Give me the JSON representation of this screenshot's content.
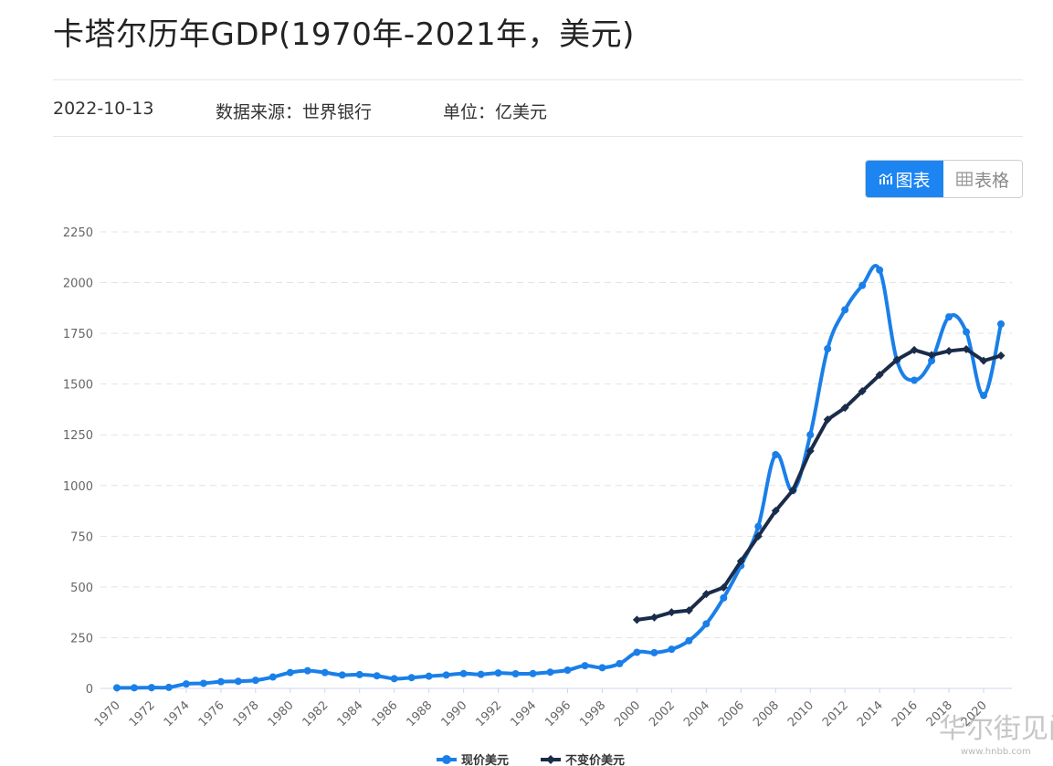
{
  "page": {
    "title": "卡塔尔历年GDP(1970年-2021年，美元)",
    "date": "2022-10-13",
    "source": "数据来源：世界银行",
    "unit": "单位：亿美元"
  },
  "view_toggle": {
    "chart_label": "图表",
    "table_label": "表格",
    "active": "chart"
  },
  "watermark": {
    "text": "华尔街见闻",
    "sub": "www.hnbb.com"
  },
  "colors": {
    "current": "#1a7fe8",
    "constant": "#1a2c4a",
    "grid": "#e3e3e3",
    "accent": "#1d85f2"
  },
  "chart_data": {
    "type": "line",
    "title": "",
    "xlabel": "",
    "ylabel": "",
    "ylim": [
      0,
      2250
    ],
    "yticks": [
      0,
      250,
      500,
      750,
      1000,
      1250,
      1500,
      1750,
      2000,
      2250
    ],
    "x": [
      1970,
      1971,
      1972,
      1973,
      1974,
      1975,
      1976,
      1977,
      1978,
      1979,
      1980,
      1981,
      1982,
      1983,
      1984,
      1985,
      1986,
      1987,
      1988,
      1989,
      1990,
      1991,
      1992,
      1993,
      1994,
      1995,
      1996,
      1997,
      1998,
      1999,
      2000,
      2001,
      2002,
      2003,
      2004,
      2005,
      2006,
      2007,
      2008,
      2009,
      2010,
      2011,
      2012,
      2013,
      2014,
      2015,
      2016,
      2017,
      2018,
      2019,
      2020,
      2021
    ],
    "xtick_labels": [
      "1970",
      "1972",
      "1974",
      "1976",
      "1978",
      "1980",
      "1982",
      "1984",
      "1986",
      "1988",
      "1990",
      "1992",
      "1994",
      "1996",
      "1998",
      "2000",
      "2002",
      "2004",
      "2006",
      "2008",
      "2010",
      "2012",
      "2014",
      "2016",
      "2018",
      "2020"
    ],
    "legend_position": "bottom-center",
    "grid": true,
    "series": [
      {
        "name": "现价美元",
        "marker": "circle",
        "values": [
          3,
          3,
          4,
          5,
          22,
          25,
          33,
          35,
          40,
          56,
          78,
          87,
          78,
          66,
          68,
          62,
          48,
          53,
          60,
          66,
          73,
          69,
          76,
          72,
          73,
          80,
          90,
          112,
          102,
          122,
          178,
          176,
          193,
          235,
          318,
          446,
          605,
          798,
          1152,
          975,
          1250,
          1674,
          1866,
          1986,
          2062,
          1616,
          1519,
          1615,
          1831,
          1757,
          1444,
          1796
        ]
      },
      {
        "name": "不变价美元",
        "marker": "diamond",
        "values": [
          null,
          null,
          null,
          null,
          null,
          null,
          null,
          null,
          null,
          null,
          null,
          null,
          null,
          null,
          null,
          null,
          null,
          null,
          null,
          null,
          null,
          null,
          null,
          null,
          null,
          null,
          null,
          null,
          null,
          null,
          338,
          350,
          375,
          384,
          465,
          497,
          627,
          750,
          875,
          977,
          1170,
          1325,
          1383,
          1465,
          1545,
          1620,
          1668,
          1643,
          1663,
          1672,
          1615,
          1640
        ]
      }
    ]
  }
}
